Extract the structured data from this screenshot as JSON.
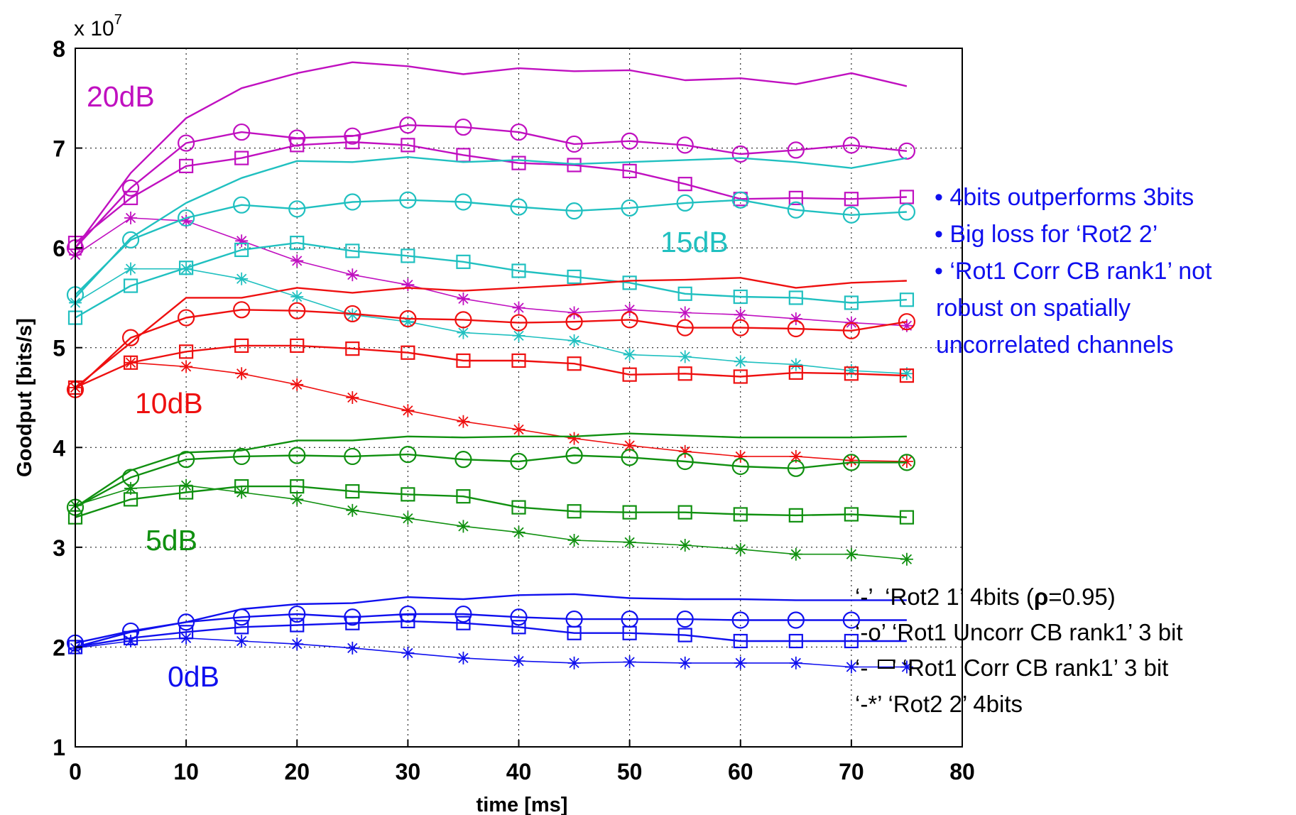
{
  "chart_data": {
    "type": "line",
    "title": "",
    "xlabel": "time [ms]",
    "ylabel": "Goodput [bits/s]",
    "xlim": [
      0,
      80
    ],
    "ylim": [
      1,
      8
    ],
    "y_exponent_label": "x 10",
    "y_exponent_power": "7",
    "y_multiplier": 10000000,
    "grid": true,
    "x_ticks": [
      0,
      10,
      20,
      30,
      40,
      50,
      60,
      70,
      80
    ],
    "y_ticks": [
      1,
      2,
      3,
      4,
      5,
      6,
      7,
      8
    ],
    "x": [
      0,
      5,
      10,
      15,
      20,
      25,
      30,
      35,
      40,
      45,
      50,
      55,
      60,
      65,
      70,
      75
    ],
    "snr_labels": [
      {
        "text": "20dB",
        "color": "#c010c0"
      },
      {
        "text": "15dB",
        "color": "#20c0c0"
      },
      {
        "text": "10dB",
        "color": "#ee1010"
      },
      {
        "text": "5dB",
        "color": "#109010"
      },
      {
        "text": "0dB",
        "color": "#1010ee"
      }
    ],
    "notes": [
      "• 4bits outperforms 3bits",
      "• Big loss for ‘Rot2 2’",
      "• ‘Rot1 Corr CB rank1’ not",
      "robust on spatially",
      "uncorrelated channels"
    ],
    "legend": [
      {
        "code": "‘-’",
        "text": "‘Rot2 1’ 4bits (",
        "rho": "ρ",
        "tail": "=0.95)",
        "marker": "none"
      },
      {
        "code": "‘-o’",
        "text": "‘Rot1 Uncorr CB rank1’ 3 bit",
        "marker": "circle"
      },
      {
        "code": "‘-",
        "code_tail": "’",
        "text": "‘Rot1 Corr CB rank1’ 3 bit",
        "marker": "square"
      },
      {
        "code": "‘-*’",
        "text": "‘Rot2 2’ 4bits",
        "marker": "star"
      }
    ],
    "series": [
      {
        "snr": "20dB",
        "color": "#c010c0",
        "marker": "none",
        "values": [
          6.0,
          6.75,
          7.3,
          7.6,
          7.75,
          7.86,
          7.82,
          7.74,
          7.8,
          7.77,
          7.78,
          7.68,
          7.7,
          7.64,
          7.75,
          7.62
        ]
      },
      {
        "snr": "20dB",
        "color": "#c010c0",
        "marker": "circle",
        "values": [
          6.0,
          6.6,
          7.05,
          7.16,
          7.1,
          7.12,
          7.23,
          7.21,
          7.16,
          7.04,
          7.07,
          7.03,
          6.94,
          6.98,
          7.03,
          6.97
        ]
      },
      {
        "snr": "20dB",
        "color": "#c010c0",
        "marker": "square",
        "values": [
          6.05,
          6.5,
          6.82,
          6.9,
          7.03,
          7.06,
          7.03,
          6.93,
          6.85,
          6.83,
          6.77,
          6.64,
          6.49,
          6.5,
          6.49,
          6.51
        ]
      },
      {
        "snr": "20dB",
        "color": "#c010c0",
        "marker": "star",
        "values": [
          5.93,
          6.3,
          6.27,
          6.07,
          5.87,
          5.73,
          5.63,
          5.49,
          5.4,
          5.35,
          5.38,
          5.35,
          5.33,
          5.29,
          5.25,
          5.22
        ]
      },
      {
        "snr": "15dB",
        "color": "#20c0c0",
        "marker": "none",
        "values": [
          5.5,
          6.1,
          6.45,
          6.7,
          6.87,
          6.86,
          6.91,
          6.86,
          6.88,
          6.84,
          6.86,
          6.88,
          6.9,
          6.86,
          6.8,
          6.9
        ]
      },
      {
        "snr": "15dB",
        "color": "#20c0c0",
        "marker": "circle",
        "values": [
          5.53,
          6.08,
          6.3,
          6.43,
          6.39,
          6.46,
          6.48,
          6.46,
          6.41,
          6.37,
          6.4,
          6.45,
          6.48,
          6.38,
          6.33,
          6.36
        ]
      },
      {
        "snr": "15dB",
        "color": "#20c0c0",
        "marker": "square",
        "values": [
          5.3,
          5.62,
          5.8,
          5.98,
          6.05,
          5.97,
          5.92,
          5.86,
          5.77,
          5.71,
          5.65,
          5.54,
          5.51,
          5.5,
          5.45,
          5.48
        ]
      },
      {
        "snr": "15dB",
        "color": "#20c0c0",
        "marker": "star",
        "values": [
          5.45,
          5.79,
          5.79,
          5.69,
          5.51,
          5.33,
          5.26,
          5.15,
          5.12,
          5.07,
          4.93,
          4.91,
          4.86,
          4.83,
          4.77,
          4.74
        ]
      },
      {
        "snr": "10dB",
        "color": "#ee1010",
        "marker": "none",
        "values": [
          4.6,
          5.05,
          5.5,
          5.5,
          5.6,
          5.55,
          5.6,
          5.57,
          5.6,
          5.63,
          5.67,
          5.68,
          5.7,
          5.6,
          5.65,
          5.67
        ]
      },
      {
        "snr": "10dB",
        "color": "#ee1010",
        "marker": "circle",
        "values": [
          4.58,
          5.1,
          5.3,
          5.38,
          5.37,
          5.34,
          5.29,
          5.28,
          5.25,
          5.26,
          5.28,
          5.2,
          5.2,
          5.19,
          5.17,
          5.26
        ]
      },
      {
        "snr": "10dB",
        "color": "#ee1010",
        "marker": "square",
        "values": [
          4.6,
          4.85,
          4.96,
          5.02,
          5.02,
          4.99,
          4.95,
          4.87,
          4.87,
          4.84,
          4.73,
          4.74,
          4.71,
          4.75,
          4.74,
          4.72
        ]
      },
      {
        "snr": "10dB",
        "color": "#ee1010",
        "marker": "star",
        "values": [
          4.6,
          4.85,
          4.81,
          4.74,
          4.63,
          4.5,
          4.37,
          4.26,
          4.18,
          4.09,
          4.02,
          3.96,
          3.91,
          3.91,
          3.87,
          3.86
        ]
      },
      {
        "snr": "5dB",
        "color": "#109010",
        "marker": "none",
        "values": [
          3.4,
          3.77,
          3.95,
          3.97,
          4.07,
          4.07,
          4.11,
          4.1,
          4.11,
          4.11,
          4.14,
          4.12,
          4.1,
          4.1,
          4.1,
          4.11
        ]
      },
      {
        "snr": "5dB",
        "color": "#109010",
        "marker": "circle",
        "values": [
          3.4,
          3.7,
          3.88,
          3.91,
          3.92,
          3.91,
          3.93,
          3.88,
          3.86,
          3.92,
          3.9,
          3.86,
          3.81,
          3.79,
          3.85,
          3.85
        ]
      },
      {
        "snr": "5dB",
        "color": "#109010",
        "marker": "square",
        "values": [
          3.3,
          3.48,
          3.55,
          3.61,
          3.61,
          3.56,
          3.53,
          3.51,
          3.4,
          3.36,
          3.35,
          3.35,
          3.33,
          3.32,
          3.33,
          3.3
        ]
      },
      {
        "snr": "5dB",
        "color": "#109010",
        "marker": "star",
        "values": [
          3.42,
          3.59,
          3.62,
          3.55,
          3.48,
          3.37,
          3.29,
          3.21,
          3.15,
          3.07,
          3.05,
          3.02,
          2.98,
          2.93,
          2.93,
          2.88
        ]
      },
      {
        "snr": "0dB",
        "color": "#1010ee",
        "marker": "none",
        "values": [
          2.0,
          2.15,
          2.25,
          2.38,
          2.43,
          2.44,
          2.5,
          2.48,
          2.52,
          2.53,
          2.49,
          2.48,
          2.48,
          2.47,
          2.47,
          2.47
        ]
      },
      {
        "snr": "0dB",
        "color": "#1010ee",
        "marker": "circle",
        "values": [
          2.04,
          2.16,
          2.25,
          2.3,
          2.33,
          2.3,
          2.33,
          2.33,
          2.3,
          2.28,
          2.28,
          2.28,
          2.27,
          2.27,
          2.27,
          2.27
        ]
      },
      {
        "snr": "0dB",
        "color": "#1010ee",
        "marker": "square",
        "values": [
          2.0,
          2.09,
          2.15,
          2.2,
          2.22,
          2.24,
          2.26,
          2.24,
          2.2,
          2.14,
          2.14,
          2.12,
          2.06,
          2.06,
          2.06,
          2.06
        ]
      },
      {
        "snr": "0dB",
        "color": "#1010ee",
        "marker": "star",
        "values": [
          1.99,
          2.06,
          2.09,
          2.06,
          2.03,
          1.99,
          1.94,
          1.89,
          1.86,
          1.84,
          1.85,
          1.84,
          1.84,
          1.84,
          1.8,
          1.8
        ]
      }
    ]
  }
}
